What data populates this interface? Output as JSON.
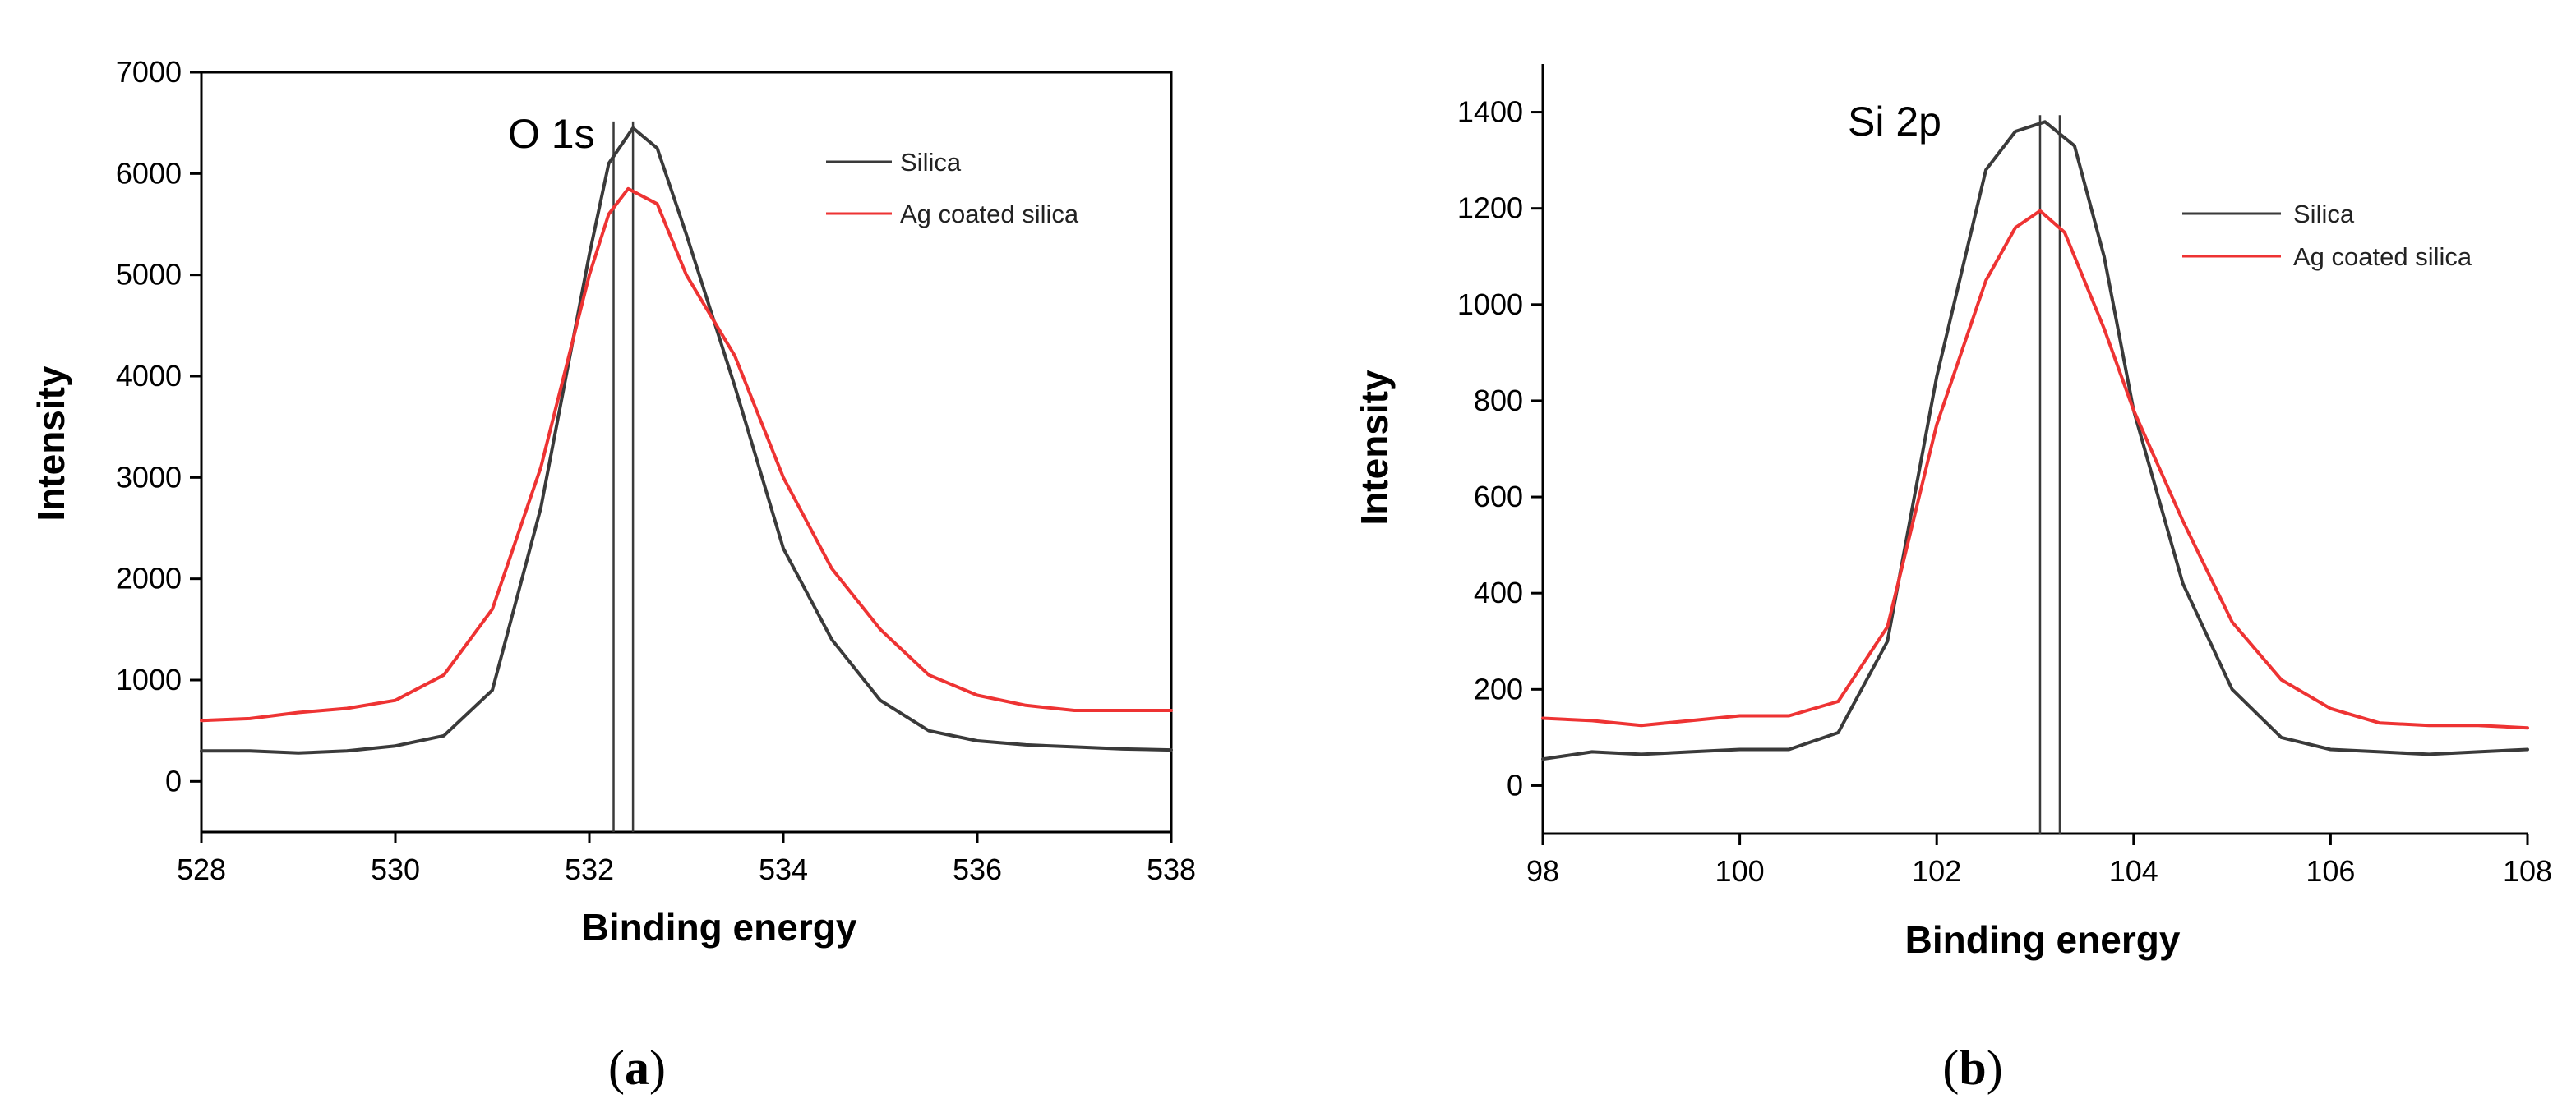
{
  "chart_data": [
    {
      "type": "line",
      "panel": "(a)",
      "panel_letter": "a",
      "title": "O 1s",
      "xlabel": "Binding energy",
      "ylabel": "Intensity",
      "xlim": [
        528,
        538
      ],
      "ylim": [
        -500,
        7000
      ],
      "xticks": [
        528,
        530,
        532,
        534,
        536,
        538
      ],
      "yticks": [
        0,
        1000,
        2000,
        3000,
        4000,
        5000,
        6000,
        7000
      ],
      "vlines": [
        532.25,
        532.45
      ],
      "series": [
        {
          "name": "Silica",
          "color": "#3a3a3a",
          "x": [
            528,
            528.5,
            529,
            529.5,
            530,
            530.5,
            531,
            531.5,
            532,
            532.2,
            532.45,
            532.7,
            533,
            533.5,
            534,
            534.5,
            535,
            535.5,
            536,
            536.5,
            537,
            537.5,
            538
          ],
          "y": [
            300,
            300,
            280,
            300,
            350,
            450,
            900,
            2700,
            5200,
            6100,
            6450,
            6250,
            5400,
            3900,
            2300,
            1400,
            800,
            500,
            400,
            360,
            340,
            320,
            310
          ]
        },
        {
          "name": "Ag coated silica",
          "color": "#ee3333",
          "x": [
            528,
            528.5,
            529,
            529.5,
            530,
            530.5,
            531,
            531.5,
            532,
            532.2,
            532.4,
            532.7,
            533,
            533.5,
            534,
            534.5,
            535,
            535.5,
            536,
            536.5,
            537,
            537.5,
            538
          ],
          "y": [
            600,
            620,
            680,
            720,
            800,
            1050,
            1700,
            3100,
            5000,
            5600,
            5850,
            5700,
            5000,
            4200,
            3000,
            2100,
            1500,
            1050,
            850,
            750,
            700,
            700,
            700
          ]
        }
      ]
    },
    {
      "type": "line",
      "panel": "(b)",
      "panel_letter": "b",
      "title": "Si 2p",
      "xlabel": "Binding energy",
      "ylabel": "Intensity",
      "xlim": [
        98,
        108
      ],
      "ylim": [
        -100,
        1500
      ],
      "xticks": [
        98,
        100,
        102,
        104,
        106,
        108
      ],
      "yticks": [
        0,
        200,
        400,
        600,
        800,
        1000,
        1200,
        1400
      ],
      "vlines": [
        103.05,
        103.25
      ],
      "series": [
        {
          "name": "Silica",
          "color": "#3a3a3a",
          "x": [
            98,
            98.5,
            99,
            99.5,
            100,
            100.5,
            101,
            101.5,
            102,
            102.5,
            102.8,
            103.1,
            103.4,
            103.7,
            104,
            104.5,
            105,
            105.5,
            106,
            106.5,
            107,
            107.5,
            108
          ],
          "y": [
            55,
            70,
            65,
            70,
            75,
            75,
            110,
            300,
            850,
            1280,
            1360,
            1380,
            1330,
            1100,
            780,
            420,
            200,
            100,
            75,
            70,
            65,
            70,
            75
          ]
        },
        {
          "name": "Ag coated silica",
          "color": "#ee3333",
          "x": [
            98,
            98.5,
            99,
            99.5,
            100,
            100.5,
            101,
            101.5,
            102,
            102.5,
            102.8,
            103.05,
            103.3,
            103.7,
            104,
            104.5,
            105,
            105.5,
            106,
            106.5,
            107,
            107.5,
            108
          ],
          "y": [
            140,
            135,
            125,
            135,
            145,
            145,
            175,
            330,
            750,
            1050,
            1160,
            1195,
            1150,
            950,
            780,
            550,
            340,
            220,
            160,
            130,
            125,
            125,
            120
          ]
        }
      ]
    }
  ]
}
